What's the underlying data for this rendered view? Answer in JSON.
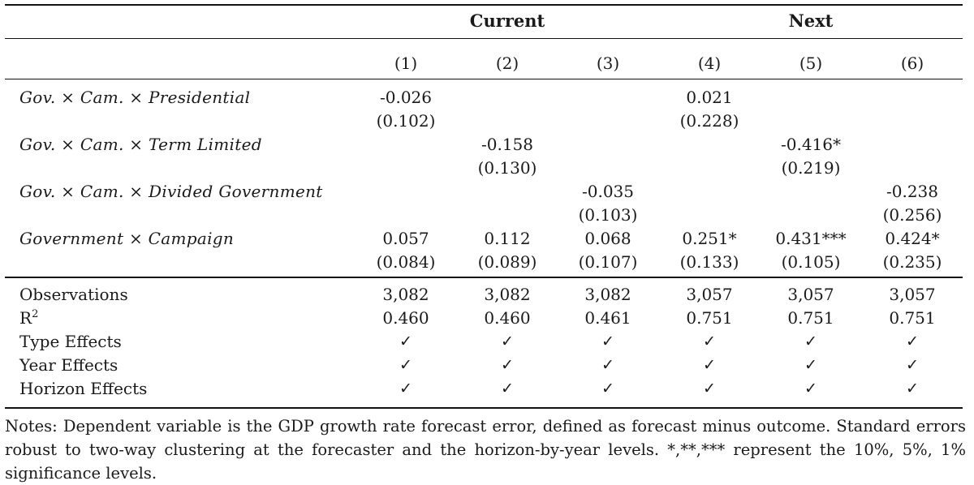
{
  "groups": {
    "current": "Current",
    "next": "Next"
  },
  "columns": [
    "(1)",
    "(2)",
    "(3)",
    "(4)",
    "(5)",
    "(6)"
  ],
  "rows": [
    {
      "label": "Gov. × Cam. × Presidential",
      "coef": [
        "-0.026",
        "",
        "",
        "0.021",
        "",
        ""
      ],
      "se": [
        "(0.102)",
        "",
        "",
        "(0.228)",
        "",
        ""
      ]
    },
    {
      "label": "Gov. × Cam. × Term Limited",
      "coef": [
        "",
        "-0.158",
        "",
        "",
        "-0.416*",
        ""
      ],
      "se": [
        "",
        "(0.130)",
        "",
        "",
        "(0.219)",
        ""
      ]
    },
    {
      "label": "Gov. × Cam. × Divided Government",
      "coef": [
        "",
        "",
        "-0.035",
        "",
        "",
        "-0.238"
      ],
      "se": [
        "",
        "",
        "(0.103)",
        "",
        "",
        "(0.256)"
      ]
    },
    {
      "label": "Government × Campaign",
      "coef": [
        "0.057",
        "0.112",
        "0.068",
        "0.251*",
        "0.431***",
        "0.424*"
      ],
      "se": [
        "(0.084)",
        "(0.089)",
        "(0.107)",
        "(0.133)",
        "(0.105)",
        "(0.235)"
      ]
    }
  ],
  "stats": {
    "observations": {
      "label": "Observations",
      "values": [
        "3,082",
        "3,082",
        "3,082",
        "3,057",
        "3,057",
        "3,057"
      ]
    },
    "r2": {
      "label": "R",
      "sup": "2",
      "values": [
        "0.460",
        "0.460",
        "0.461",
        "0.751",
        "0.751",
        "0.751"
      ]
    },
    "type_effects": {
      "label": "Type Effects",
      "values": [
        "✓",
        "✓",
        "✓",
        "✓",
        "✓",
        "✓"
      ]
    },
    "year_effects": {
      "label": "Year Effects",
      "values": [
        "✓",
        "✓",
        "✓",
        "✓",
        "✓",
        "✓"
      ]
    },
    "horizon_effects": {
      "label": "Horizon Effects",
      "values": [
        "✓",
        "✓",
        "✓",
        "✓",
        "✓",
        "✓"
      ]
    }
  },
  "notes": "Notes: Dependent variable is the GDP growth rate forecast error, defined as forecast minus outcome. Standard errors robust to two-way clustering at the forecaster and the horizon-by-year levels. *,**,*** represent the 10%, 5%, 1% significance levels."
}
